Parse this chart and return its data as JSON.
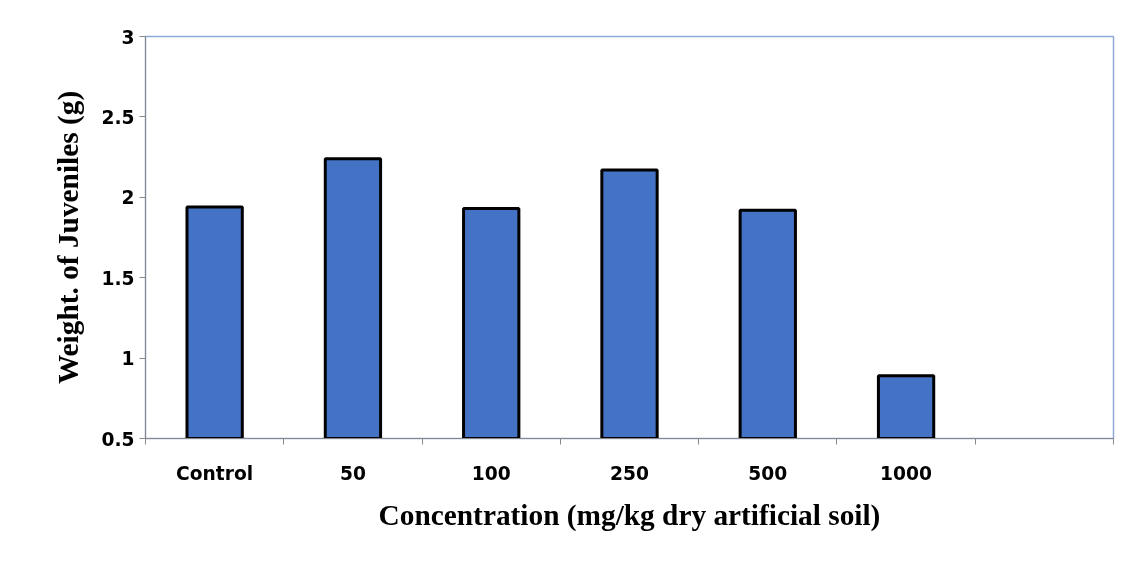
{
  "chart_data": {
    "type": "bar",
    "xlabel": "Concentration (mg/kg dry artificial soil)",
    "ylabel": "Weight. of Juveniles (g)",
    "categories": [
      "Control",
      "50",
      "100",
      "250",
      "500",
      "1000",
      null
    ],
    "values": [
      1.94,
      2.24,
      1.93,
      2.17,
      1.92,
      0.89,
      null
    ],
    "color": "#4472c4",
    "ylim": [
      0.5,
      3
    ],
    "yticks": [
      0.5,
      1,
      1.5,
      2,
      2.5,
      3
    ],
    "grid": false
  }
}
